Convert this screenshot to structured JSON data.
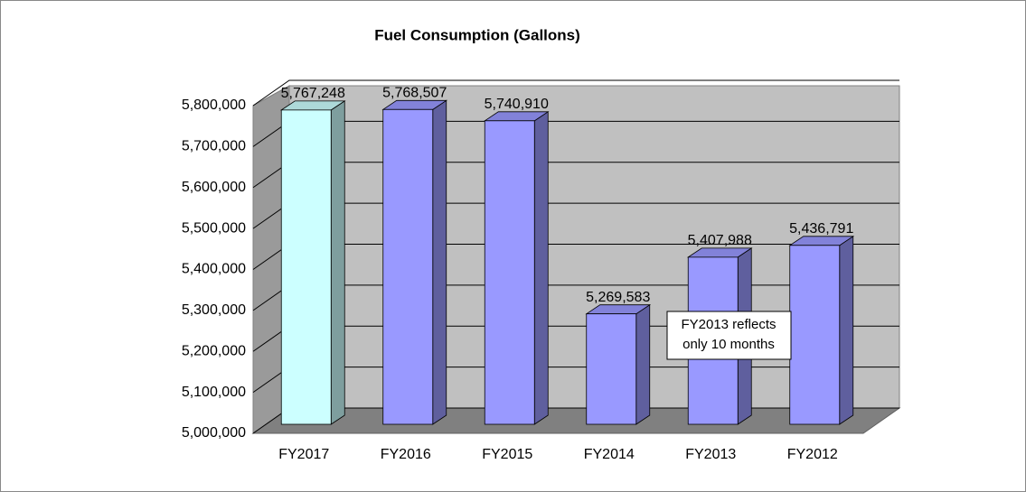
{
  "chart_data": {
    "type": "bar3d",
    "title": "Fuel Consumption (Gallons)",
    "categories": [
      "FY2017",
      "FY2016",
      "FY2015",
      "FY2014",
      "FY2013",
      "FY2012"
    ],
    "values": [
      5767248,
      5768507,
      5740910,
      5269583,
      5407988,
      5436791
    ],
    "value_labels": [
      "5,767,248",
      "5,768,507",
      "5,740,910",
      "5,269,583",
      "5,407,988",
      "5,436,791"
    ],
    "colors": [
      "#ccffff",
      "#9999ff",
      "#9999ff",
      "#9999ff",
      "#9999ff",
      "#9999ff"
    ],
    "ylim": [
      5000000,
      5800000
    ],
    "yticks": [
      {
        "value": 5000000,
        "label": "5,000,000"
      },
      {
        "value": 5100000,
        "label": "5,100,000"
      },
      {
        "value": 5200000,
        "label": "5,200,000"
      },
      {
        "value": 5300000,
        "label": "5,300,000"
      },
      {
        "value": 5400000,
        "label": "5,400,000"
      },
      {
        "value": 5500000,
        "label": "5,500,000"
      },
      {
        "value": 5600000,
        "label": "5,600,000"
      },
      {
        "value": 5700000,
        "label": "5,700,000"
      },
      {
        "value": 5800000,
        "label": "5,800,000"
      }
    ],
    "grid": true,
    "annotation": {
      "lines": [
        "FY2013 reflects",
        "only 10 months"
      ]
    }
  }
}
